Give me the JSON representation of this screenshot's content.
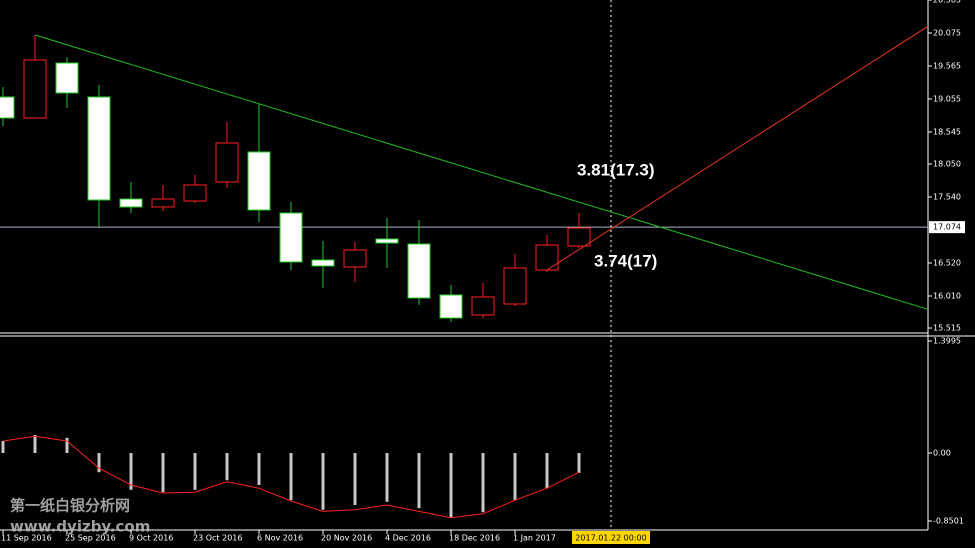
{
  "chart_data": [
    {
      "type": "candlestick",
      "categories": [
        "11 Sep 2016",
        null,
        "25 Sep 2016",
        null,
        "9 Oct 2016",
        null,
        "23 Oct 2016",
        null,
        "6 Nov 2016",
        null,
        "20 Nov 2016",
        null,
        "4 Dec 2016",
        null,
        "18 Dec 2016",
        null,
        "1 Jan 2017",
        null,
        null
      ],
      "open": [
        19.086,
        18.761,
        19.611,
        19.086,
        17.509,
        17.386,
        17.478,
        17.772,
        18.236,
        17.293,
        16.567,
        16.458,
        16.891,
        16.814,
        16.026,
        15.716,
        15.886,
        16.412,
        16.783
      ],
      "high": [
        19.24,
        20.044,
        19.704,
        19.271,
        17.772,
        17.726,
        17.88,
        18.699,
        18.978,
        17.463,
        16.86,
        16.845,
        17.216,
        17.185,
        16.18,
        16.211,
        16.659,
        16.953,
        17.293
      ],
      "low": [
        18.638,
        18.761,
        18.916,
        17.061,
        17.293,
        17.324,
        17.448,
        17.679,
        17.154,
        16.412,
        16.134,
        16.227,
        16.443,
        15.871,
        15.608,
        15.67,
        15.855,
        16.381,
        16.752
      ],
      "close": [
        18.761,
        19.658,
        19.148,
        17.494,
        17.386,
        17.509,
        17.726,
        18.375,
        17.339,
        16.536,
        16.474,
        16.721,
        16.829,
        15.979,
        15.67,
        15.995,
        16.443,
        16.798,
        17.061
      ],
      "up_color": "#ff2020",
      "down_color": "#ffffff",
      "ylim": [
        15.438,
        20.585
      ],
      "yticks": [
        20.585,
        20.075,
        19.565,
        19.055,
        18.545,
        {
          "value": 18.05,
          "label": "18.050"
        },
        {
          "value": 17.54,
          "label": "17.540"
        },
        {
          "value": 16.52,
          "label": "16.520"
        },
        {
          "value": 16.01,
          "label": "16.010"
        },
        15.515
      ],
      "current_price": 17.074,
      "trendlines": [
        {
          "color": "#22bb22",
          "x": [
            1,
            28.97
          ],
          "y": [
            20.044,
            15.794
          ]
        },
        {
          "color": "#ee3322",
          "x": [
            17,
            28.97
          ],
          "y": [
            16.412,
            20.199
          ]
        }
      ],
      "annotations": [
        "3.81(17.3)",
        "3.74(17)"
      ],
      "cursor_label": "2017.01.22 00:00",
      "watermark": [
        "第一纸白银分析网",
        "www.dyizby.com"
      ]
    },
    {
      "type": "oscillator",
      "values": [
        0.15,
        0.225,
        0.19,
        -0.24,
        -0.46,
        -0.49,
        -0.46,
        -0.34,
        -0.4,
        -0.59,
        -0.71,
        -0.65,
        -0.61,
        -0.69,
        -0.81,
        -0.74,
        -0.59,
        -0.44,
        -0.25
      ],
      "signal": [
        0.15,
        0.21,
        0.15,
        -0.19,
        -0.4,
        -0.5,
        -0.49,
        -0.36,
        -0.44,
        -0.6,
        -0.73,
        -0.71,
        -0.65,
        -0.73,
        -0.81,
        -0.76,
        -0.59,
        -0.44,
        -0.24
      ],
      "color": "#c8c8c8",
      "signal_color": "#ff2020",
      "ylim": [
        -0.9625,
        1.45
      ],
      "yticks": [
        1.3995,
        {
          "value": 0,
          "label": "0.00"
        },
        -0.8501
      ]
    }
  ]
}
